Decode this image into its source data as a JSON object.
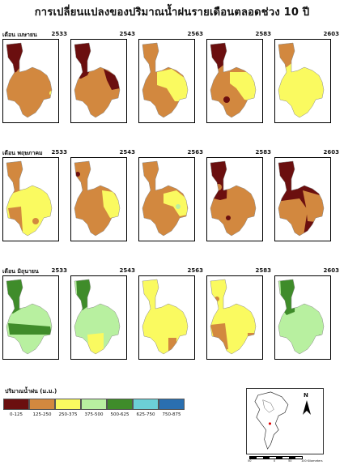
{
  "title": "การเปลี่ยนแปลงของปริมาณน้ำฝนรายเดือนตลอดช่วง 10 ปี",
  "rows": [
    {
      "label": "เดือน เมษายน",
      "years": [
        "2533",
        "2543",
        "2563",
        "2583",
        "2603"
      ]
    },
    {
      "label": "เดือน พฤษภาคม",
      "years": [
        "2533",
        "2543",
        "2563",
        "2583",
        "2603"
      ]
    },
    {
      "label": "เดือน มิถุนายน",
      "years": [
        "2533",
        "2543",
        "2563",
        "2583",
        "2603"
      ]
    }
  ],
  "legend": {
    "title": "ปริมาณน้ำฝน   (ม.ม.)",
    "items": [
      {
        "label": "0-125",
        "color": "#6b0f0f"
      },
      {
        "label": "125-250",
        "color": "#d2883f"
      },
      {
        "label": "250-375",
        "color": "#fafa60"
      },
      {
        "label": "375-500",
        "color": "#b8f0a0"
      },
      {
        "label": "500-625",
        "color": "#3f8c2a"
      },
      {
        "label": "625-750",
        "color": "#6ccfd6"
      },
      {
        "label": "750-875",
        "color": "#2a6fb0"
      }
    ]
  },
  "inset": {
    "north": "N"
  },
  "scale": {
    "labels": [
      "50",
      "0",
      "50",
      "100 Kilometers"
    ]
  }
}
